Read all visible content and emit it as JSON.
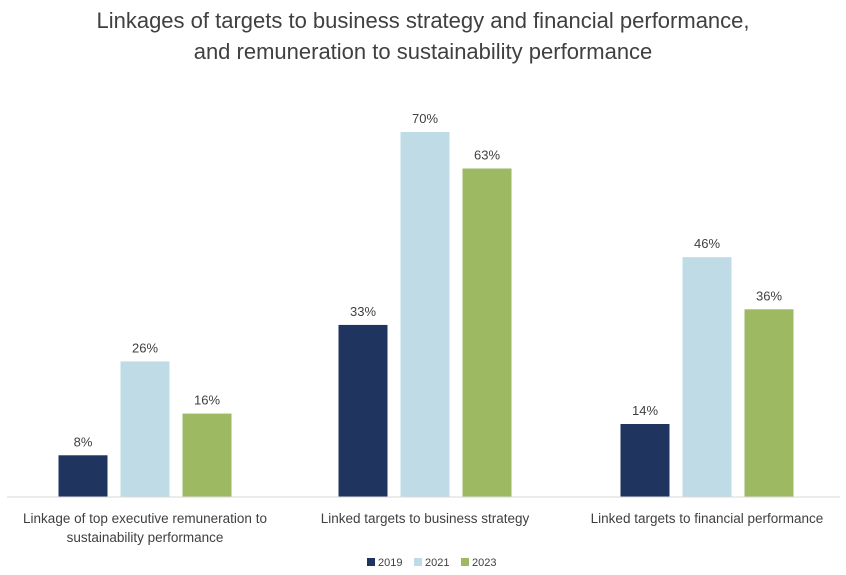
{
  "chart_data": {
    "type": "bar",
    "title": "Linkages of targets to business strategy and financial performance, and remuneration to sustainability performance",
    "title_lines": [
      "Linkages of targets to business strategy and financial performance,",
      "and remuneration to sustainability performance"
    ],
    "categories": [
      "Linkage of top executive remuneration to sustainability performance",
      "Linked targets to business strategy",
      "Linked targets to financial performance"
    ],
    "category_lines": [
      [
        "Linkage of top executive remuneration to",
        "sustainability performance"
      ],
      [
        "Linked targets to business strategy"
      ],
      [
        "Linked targets to financial performance"
      ]
    ],
    "series": [
      {
        "name": "2019",
        "color": "#1f3560",
        "values": [
          8,
          33,
          14
        ],
        "labels": [
          "8%",
          "33%",
          "14%"
        ]
      },
      {
        "name": "2021",
        "color": "#bfdce6",
        "values": [
          26,
          70,
          46
        ],
        "labels": [
          "26%",
          "70%",
          "46%"
        ]
      },
      {
        "name": "2023",
        "color": "#9dba63",
        "values": [
          16,
          63,
          36
        ],
        "labels": [
          "16%",
          "63%",
          "36%"
        ]
      }
    ],
    "unit": "%",
    "ylim": [
      0,
      70
    ],
    "grid": false,
    "legend_position": "bottom-center",
    "axis_line_color": "#d9d9d9"
  }
}
